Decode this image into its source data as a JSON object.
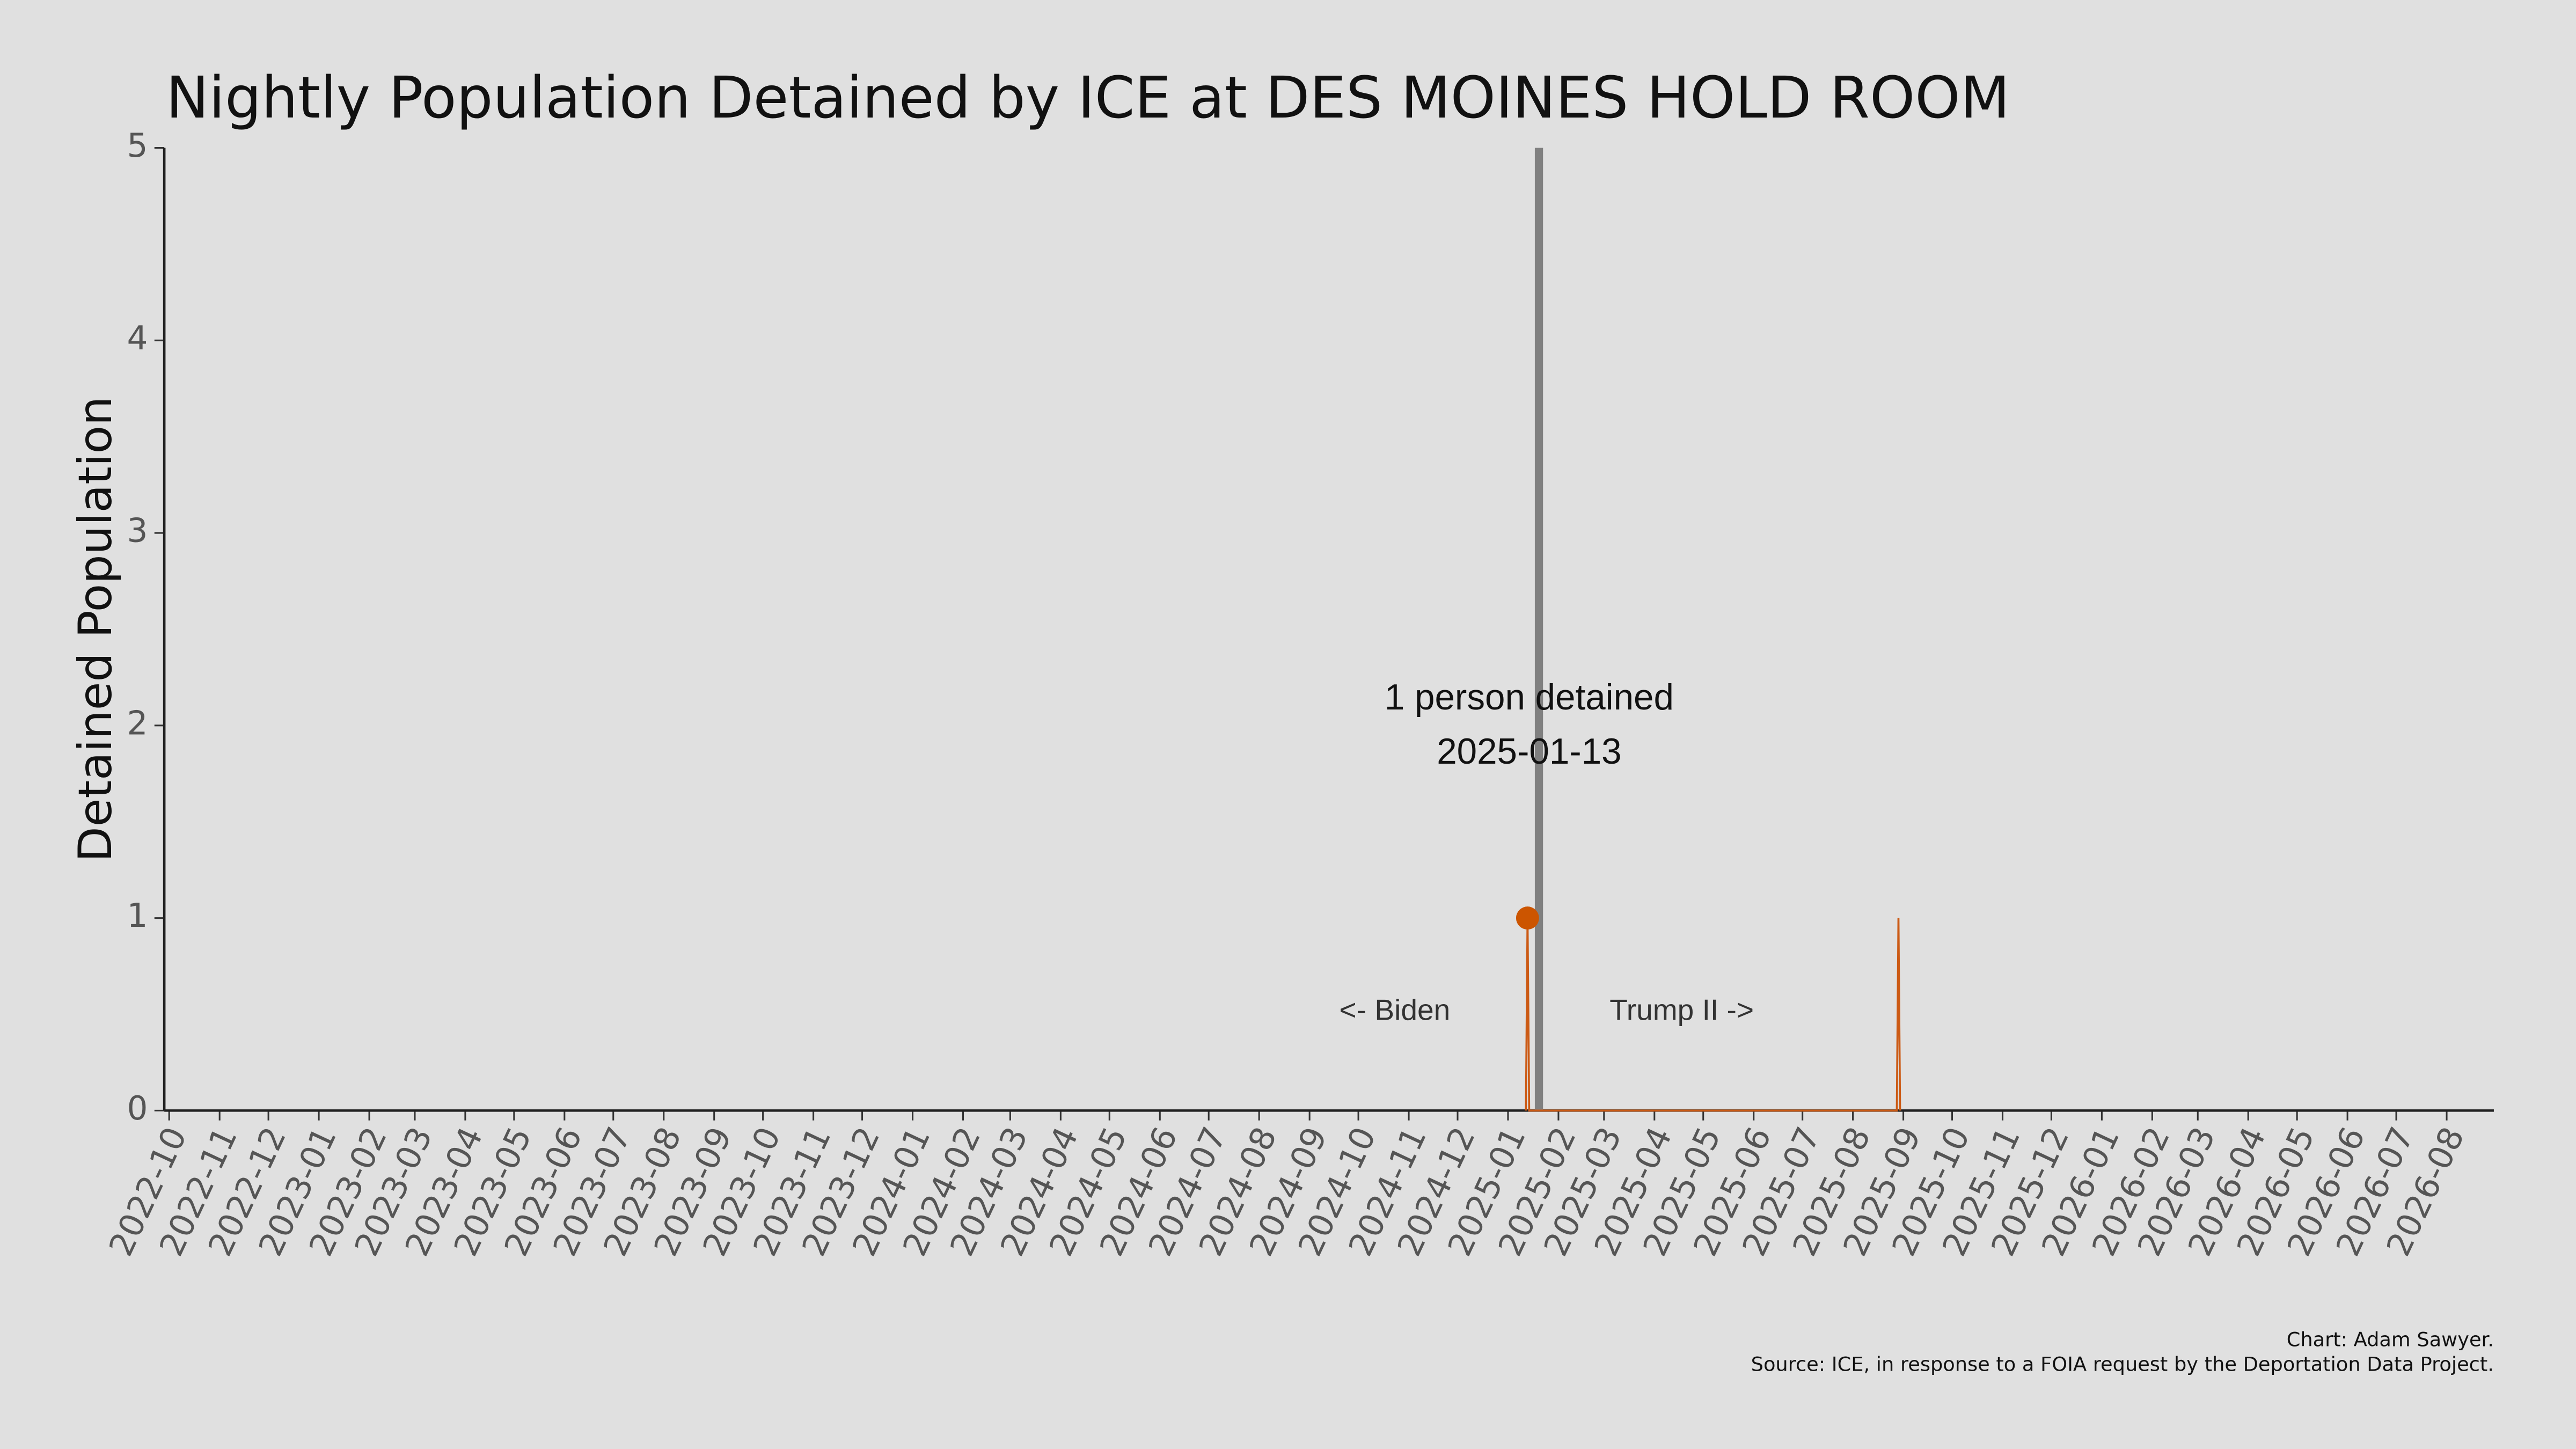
{
  "chart_data": {
    "type": "line",
    "title": "Nightly Population Detained by ICE at DES MOINES HOLD ROOM",
    "y_label": "Detained Population",
    "x": [
      "2025-01-12",
      "2025-01-13",
      "2025-01-14",
      "2025-08-28",
      "2025-08-29",
      "2025-08-30"
    ],
    "values": [
      0,
      1,
      0,
      0,
      1,
      0
    ],
    "color": "#cc5a14",
    "xlim": [
      "2022-09-28",
      "2026-08-30"
    ],
    "xticks": [
      "2022-10",
      "2022-11",
      "2022-12",
      "2023-01",
      "2023-02",
      "2023-03",
      "2023-04",
      "2023-05",
      "2023-06",
      "2023-07",
      "2023-08",
      "2023-09",
      "2023-10",
      "2023-11",
      "2023-12",
      "2024-01",
      "2024-02",
      "2024-03",
      "2024-04",
      "2024-05",
      "2024-06",
      "2024-07",
      "2024-08",
      "2024-09",
      "2024-10",
      "2024-11",
      "2024-12",
      "2025-01",
      "2025-02",
      "2025-03",
      "2025-04",
      "2025-05",
      "2025-06",
      "2025-07",
      "2025-08",
      "2025-09",
      "2025-10",
      "2025-11",
      "2025-12",
      "2026-01",
      "2026-02",
      "2026-03",
      "2026-04",
      "2026-05",
      "2026-06",
      "2026-07",
      "2026-08"
    ],
    "ylim": [
      0,
      5
    ],
    "yticks": [
      0,
      1,
      2,
      3,
      4,
      5
    ],
    "grid": false,
    "highlight": {
      "label": "1 person detained",
      "x": "2025-01-13",
      "value": 1,
      "color": "#cc5500"
    },
    "divider": {
      "x": "2025-01-20",
      "color": "#808080",
      "left_label": "<- Biden",
      "right_label": "Trump II ->"
    },
    "credits": [
      "Chart: Adam Sawyer.",
      "Source: ICE, in response to a FOIA request by the Deportation Data Project."
    ]
  }
}
